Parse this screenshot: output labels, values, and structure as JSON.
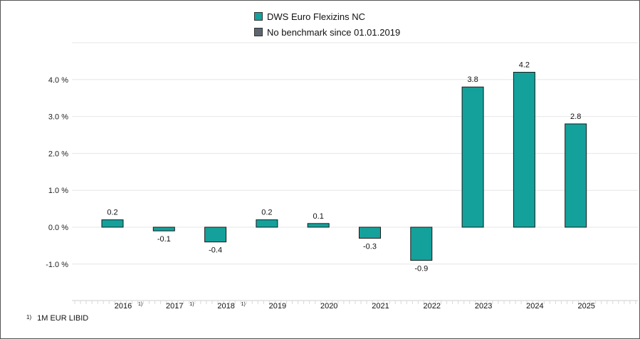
{
  "legend": [
    {
      "label": "DWS Euro Flexizins NC",
      "color": "#14a19b"
    },
    {
      "label": "No benchmark since 01.01.2019",
      "color": "#5d6670"
    }
  ],
  "footnote": {
    "marker": "1)",
    "text": "1M EUR LIBID"
  },
  "chart_data": {
    "type": "bar",
    "categories": [
      "2016",
      "2017",
      "2018",
      "2019",
      "2020",
      "2021",
      "2022",
      "2023",
      "2024",
      "2025"
    ],
    "category_markers": [
      "1)",
      "1)",
      "1)",
      "",
      "",
      "",
      "",
      "",
      "",
      ""
    ],
    "series": [
      {
        "name": "DWS Euro Flexizins NC",
        "values": [
          0.2,
          -0.1,
          -0.4,
          0.2,
          0.1,
          -0.3,
          -0.9,
          3.8,
          4.2,
          2.8
        ],
        "color": "#14a19b"
      }
    ],
    "data_labels": [
      "0.2",
      "-0.1",
      "-0.4",
      "0.2",
      "0.1",
      "-0.3",
      "-0.9",
      "3.8",
      "4.2",
      "2.8"
    ],
    "yticks": [
      -1.0,
      0.0,
      1.0,
      2.0,
      3.0,
      4.0
    ],
    "ytick_labels": [
      "-1.0 %",
      "0.0 %",
      "1.0 %",
      "2.0 %",
      "3.0 %",
      "4.0 %"
    ],
    "ylim": [
      -2.0,
      5.0
    ],
    "grid": true,
    "legend_position": "top-center"
  }
}
